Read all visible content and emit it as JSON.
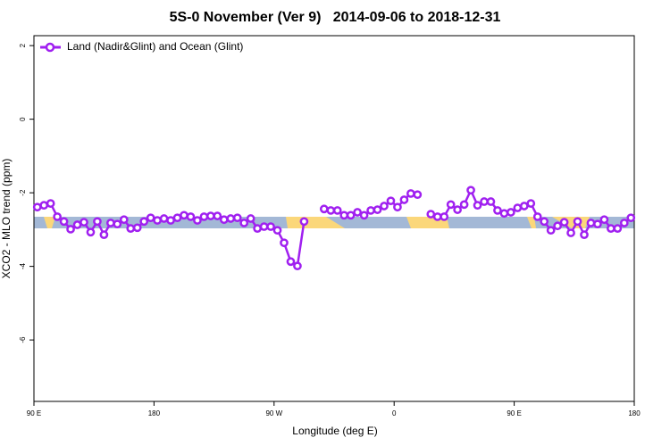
{
  "chart_data": {
    "type": "line",
    "title": "5S-0 November (Ver 9)   2014-09-06 to 2018-12-31",
    "x_label": "Longitude (deg E)",
    "y_label": "XCO2 - MLO trend (ppm)",
    "x": [
      -267.5,
      -262.5,
      -257.5,
      -252.5,
      -247.5,
      -242.5,
      -237.5,
      -232.5,
      -227.5,
      -222.5,
      -217.5,
      -212.5,
      -207.5,
      -202.5,
      -197.5,
      -192.5,
      -187.5,
      -182.5,
      -177.5,
      -172.5,
      -167.5,
      -162.5,
      -157.5,
      -152.5,
      -147.5,
      -142.5,
      -137.5,
      -132.5,
      -127.5,
      -122.5,
      -117.5,
      -112.5,
      -107.5,
      -102.5,
      -97.5,
      -92.5,
      -87.5,
      -82.5,
      -77.5,
      -72.5,
      -67.5,
      -62.5,
      -57.5,
      -52.5,
      -47.5,
      -42.5,
      -37.5,
      -32.5,
      -27.5,
      -22.5,
      -17.5,
      -12.5,
      -7.5,
      -2.5,
      2.5,
      7.5,
      12.5,
      17.5,
      22.5,
      27.5,
      32.5,
      37.5,
      42.5,
      47.5,
      52.5,
      57.5,
      62.5,
      67.5,
      72.5,
      77.5,
      82.5,
      87.5,
      92.5,
      97.5,
      102.5,
      107.5,
      112.5,
      117.5,
      122.5,
      127.5,
      132.5,
      137.5,
      142.5,
      147.5,
      152.5,
      157.5,
      162.5,
      167.5,
      172.5,
      177.5
    ],
    "series": [
      {
        "name": "Land (Nadir&Glint) and Ocean (Glint)",
        "color": "#a020f0",
        "values": [
          -2.39,
          -2.34,
          -2.29,
          -2.65,
          -2.78,
          -2.99,
          -2.87,
          -2.8,
          -3.07,
          -2.78,
          -3.14,
          -2.82,
          -2.85,
          -2.73,
          -2.97,
          -2.95,
          -2.78,
          -2.68,
          -2.75,
          -2.7,
          -2.75,
          -2.68,
          -2.61,
          -2.65,
          -2.75,
          -2.65,
          -2.63,
          -2.63,
          -2.73,
          -2.7,
          -2.68,
          -2.82,
          -2.7,
          -2.97,
          -2.92,
          -2.92,
          -3.02,
          -3.36,
          -3.87,
          -3.99,
          -2.78,
          null,
          null,
          -2.44,
          -2.48,
          -2.48,
          -2.61,
          -2.61,
          -2.53,
          -2.61,
          -2.48,
          -2.46,
          -2.36,
          -2.22,
          -2.39,
          -2.19,
          -2.02,
          -2.05,
          null,
          -2.58,
          -2.65,
          -2.65,
          -2.32,
          -2.46,
          -2.32,
          -1.93,
          -2.34,
          -2.24,
          -2.24,
          -2.48,
          -2.56,
          -2.53,
          -2.41,
          -2.36,
          -2.29,
          -2.65,
          -2.78,
          -3.02,
          -2.9,
          -2.8,
          -3.09,
          -2.78,
          -3.14,
          -2.82,
          -2.85,
          -2.73,
          -2.97,
          -2.97,
          -2.82,
          -2.68
        ]
      }
    ],
    "xlim": [
      -270,
      180
    ],
    "xticks": [
      {
        "value": -270,
        "label": "90 E"
      },
      {
        "value": -180,
        "label": "180"
      },
      {
        "value": -90,
        "label": "90 W"
      },
      0,
      {
        "value": 90,
        "label": "90 E"
      },
      180
    ],
    "ylim": [
      -7.67,
      2.27
    ],
    "yticks": [
      2,
      0,
      -2,
      -4,
      -6
    ],
    "legend": "top-left"
  }
}
